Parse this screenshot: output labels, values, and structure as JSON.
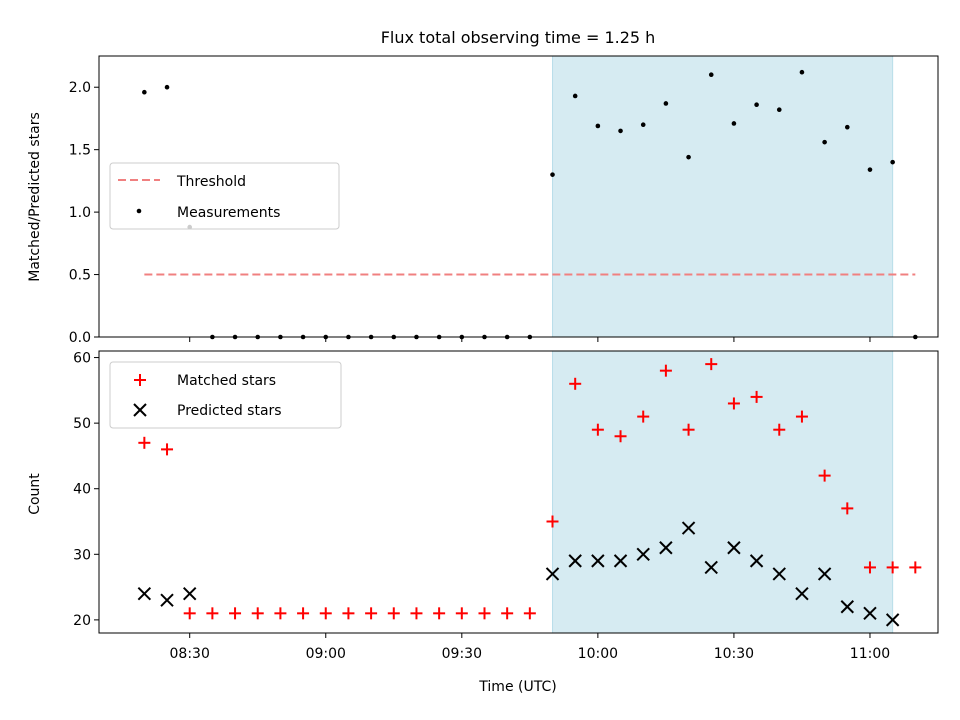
{
  "title": "Flux total observing time = 1.25 h",
  "xlabel": "Time (UTC)",
  "x_ticks": [
    "08:30",
    "09:00",
    "09:30",
    "10:00",
    "10:30",
    "11:00"
  ],
  "colors": {
    "threshold": "#f08080",
    "measurement": "#000000",
    "matched": "#ff0000",
    "predicted": "#000000",
    "highlight": "#add8e6"
  },
  "chart_data": [
    {
      "type": "scatter",
      "ylabel": "Matched/Predicted stars",
      "ylim": [
        0,
        2.25
      ],
      "yticks": [
        "0.0",
        "0.5",
        "1.0",
        "1.5",
        "2.0"
      ],
      "xlim": [
        "08:10",
        "11:15"
      ],
      "highlight_span": [
        "09:50",
        "11:05"
      ],
      "legend_loc": "center-left",
      "threshold": {
        "name": "Threshold",
        "value": 0.5,
        "x_range": [
          "08:20",
          "11:10"
        ]
      },
      "series": [
        {
          "name": "Measurements",
          "x": [
            "08:20",
            "08:25",
            "08:30",
            "08:35",
            "08:40",
            "08:45",
            "08:50",
            "08:55",
            "09:00",
            "09:05",
            "09:10",
            "09:15",
            "09:20",
            "09:25",
            "09:30",
            "09:35",
            "09:40",
            "09:45",
            "09:50",
            "09:55",
            "10:00",
            "10:05",
            "10:10",
            "10:15",
            "10:20",
            "10:25",
            "10:30",
            "10:35",
            "10:40",
            "10:45",
            "10:50",
            "10:55",
            "11:00",
            "11:05",
            "11:10"
          ],
          "y": [
            1.96,
            2.0,
            0.88,
            0,
            0,
            0,
            0,
            0,
            0,
            0,
            0,
            0,
            0,
            0,
            0,
            0,
            0,
            0,
            1.3,
            1.93,
            1.69,
            1.65,
            1.7,
            1.87,
            1.44,
            2.1,
            1.71,
            1.86,
            1.82,
            2.12,
            1.56,
            1.68,
            1.34,
            1.4,
            0
          ]
        }
      ]
    },
    {
      "type": "scatter",
      "ylabel": "Count",
      "ylim": [
        18,
        61
      ],
      "yticks": [
        "20",
        "30",
        "40",
        "50",
        "60"
      ],
      "xlim": [
        "08:10",
        "11:15"
      ],
      "highlight_span": [
        "09:50",
        "11:05"
      ],
      "legend_loc": "upper-left",
      "series": [
        {
          "name": "Matched stars",
          "x": [
            "08:20",
            "08:25",
            "08:30",
            "08:35",
            "08:40",
            "08:45",
            "08:50",
            "08:55",
            "09:00",
            "09:05",
            "09:10",
            "09:15",
            "09:20",
            "09:25",
            "09:30",
            "09:35",
            "09:40",
            "09:45",
            "09:50",
            "09:55",
            "10:00",
            "10:05",
            "10:10",
            "10:15",
            "10:20",
            "10:25",
            "10:30",
            "10:35",
            "10:40",
            "10:45",
            "10:50",
            "10:55",
            "11:00",
            "11:05",
            "11:10"
          ],
          "y": [
            47,
            46,
            21,
            21,
            21,
            21,
            21,
            21,
            21,
            21,
            21,
            21,
            21,
            21,
            21,
            21,
            21,
            21,
            35,
            56,
            49,
            48,
            51,
            58,
            49,
            59,
            53,
            54,
            49,
            51,
            42,
            37,
            28,
            28,
            28
          ]
        },
        {
          "name": "Predicted stars",
          "x": [
            "08:20",
            "08:25",
            "08:30",
            "09:50",
            "09:55",
            "10:00",
            "10:05",
            "10:10",
            "10:15",
            "10:20",
            "10:25",
            "10:30",
            "10:35",
            "10:40",
            "10:45",
            "10:50",
            "10:55",
            "11:00",
            "11:05"
          ],
          "y": [
            24,
            23,
            24,
            27,
            29,
            29,
            29,
            30,
            31,
            34,
            28,
            31,
            29,
            27,
            24,
            27,
            22,
            21,
            20
          ]
        }
      ]
    }
  ]
}
